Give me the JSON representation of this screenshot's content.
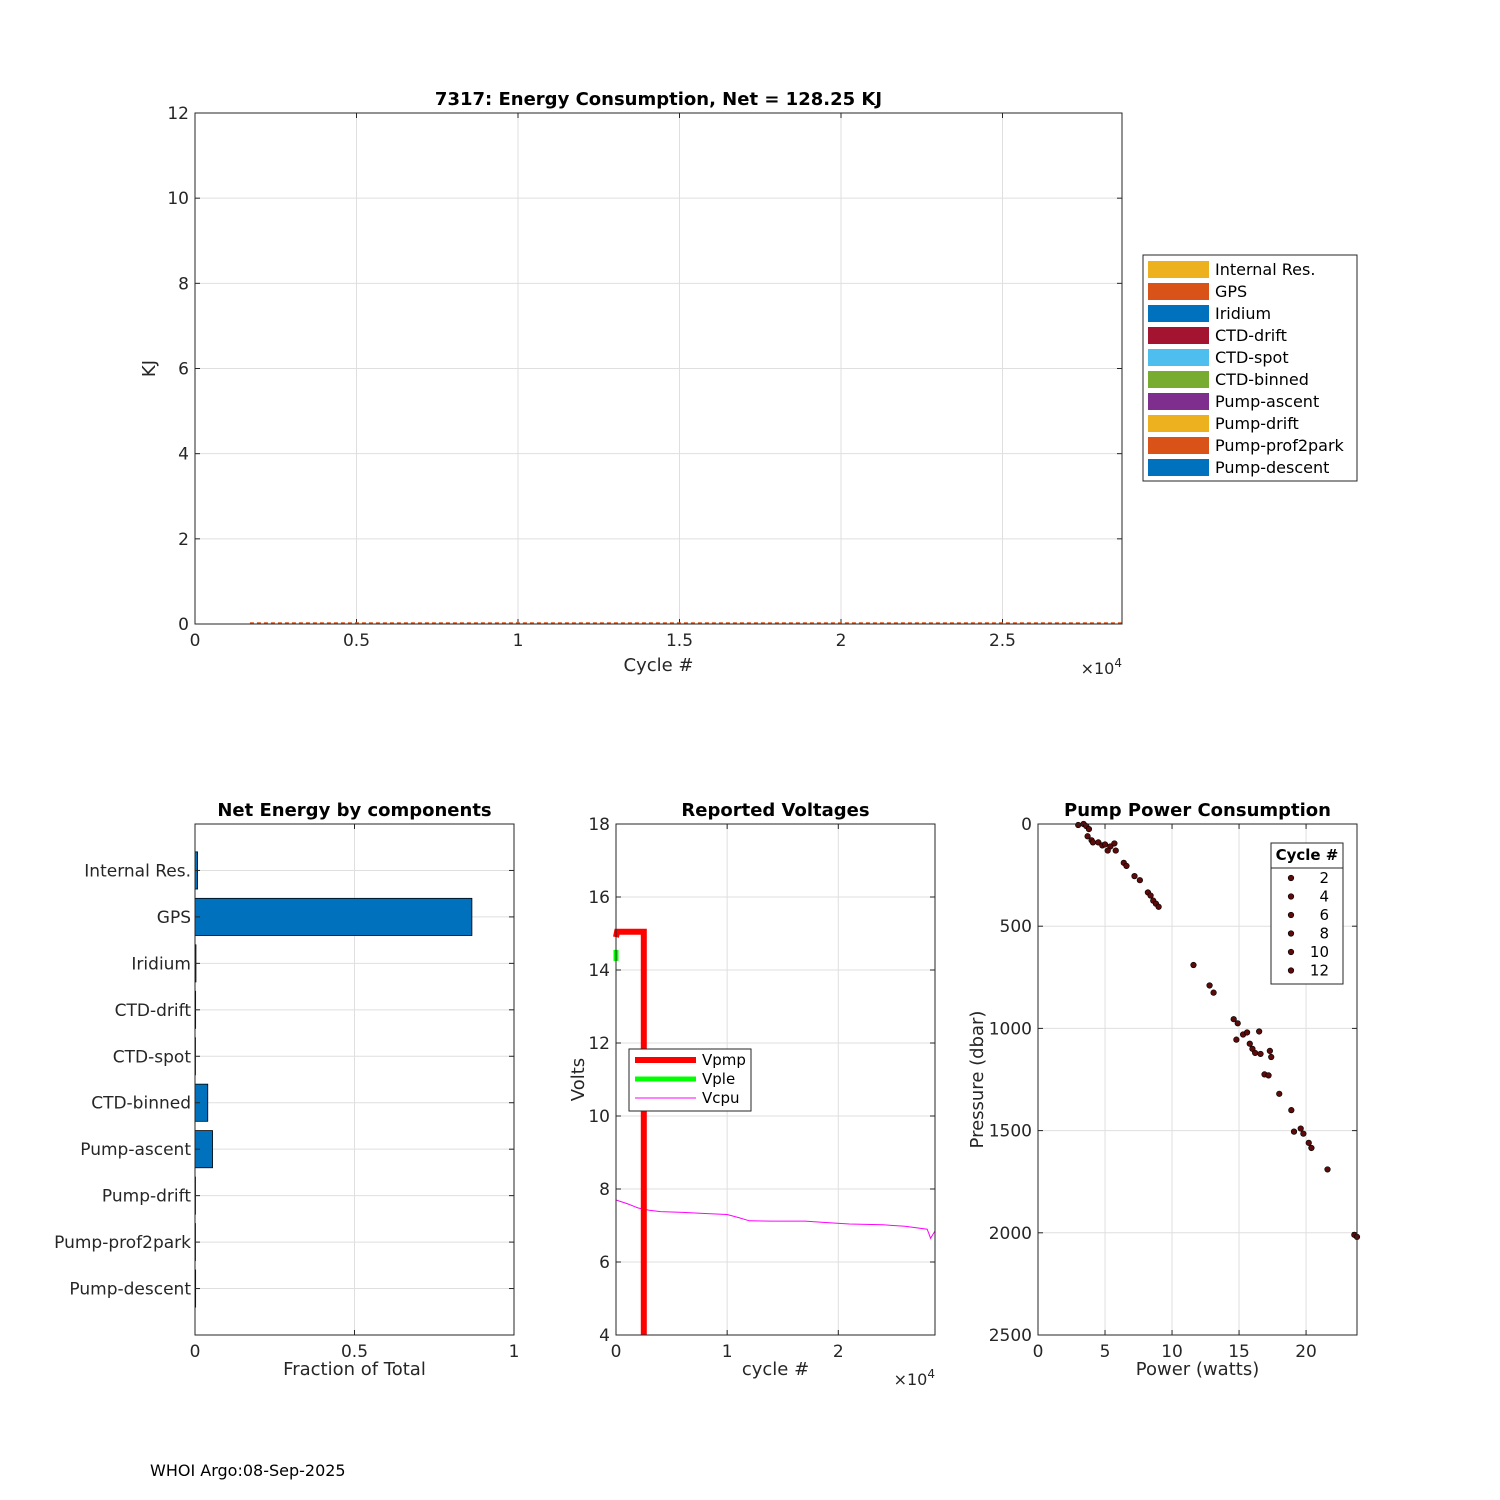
{
  "footer": "WHOI Argo:08-Sep-2025",
  "chart_data": [
    {
      "id": "energy",
      "type": "area",
      "title": "7317: Energy Consumption,  Net = 128.25 KJ",
      "xlabel": "Cycle #",
      "ylabel": "KJ",
      "xlim": [
        0,
        28700
      ],
      "ylim": [
        0,
        12
      ],
      "x_exponent_label": "×10",
      "x_exponent": "4",
      "xticks": [
        0,
        5000,
        10000,
        15000,
        20000,
        25000
      ],
      "xtick_labels": [
        "0",
        "0.5",
        "1",
        "1.5",
        "2",
        "2.5"
      ],
      "yticks": [
        0,
        2,
        4,
        6,
        8,
        10,
        12
      ],
      "ytick_labels": [
        "0",
        "2",
        "4",
        "6",
        "8",
        "10",
        "12"
      ],
      "grid": true,
      "legend_position": "outside-right",
      "x_start": 1700,
      "series": [
        {
          "name": "Internal Res.",
          "color": "#EDB120",
          "value": 0.0002
        },
        {
          "name": "GPS",
          "color": "#D95319",
          "value": 0.0035
        },
        {
          "name": "Iridium",
          "color": "#0072BD",
          "value": 2e-05
        },
        {
          "name": "CTD-drift",
          "color": "#A2142F",
          "value": 1e-05
        },
        {
          "name": "CTD-spot",
          "color": "#4DBEEE",
          "value": 1e-06
        },
        {
          "name": "CTD-binned",
          "color": "#77AC30",
          "value": 0.00015
        },
        {
          "name": "Pump-ascent",
          "color": "#7E2F8E",
          "value": 0.0002
        },
        {
          "name": "Pump-drift",
          "color": "#EDB120",
          "value": 1e-06
        },
        {
          "name": "Pump-prof2park",
          "color": "#D95319",
          "value": 1e-06
        },
        {
          "name": "Pump-descent",
          "color": "#0072BD",
          "value": 1e-05
        }
      ]
    },
    {
      "id": "components",
      "type": "bar",
      "orientation": "horizontal",
      "title": "Net Energy by components",
      "xlabel": "Fraction of Total",
      "xlim": [
        0,
        1
      ],
      "xticks": [
        0,
        0.5,
        1
      ],
      "xtick_labels": [
        "0",
        "0.5",
        "1"
      ],
      "categories": [
        "Internal Res.",
        "GPS",
        "Iridium",
        "CTD-drift",
        "CTD-spot",
        "CTD-binned",
        "Pump-ascent",
        "Pump-drift",
        "Pump-prof2park",
        "Pump-descent"
      ],
      "values": [
        0.008,
        0.868,
        0.003,
        0.002,
        0.0005,
        0.04,
        0.055,
        0.0005,
        0.0005,
        0.002
      ],
      "bar_color": "#0072BD",
      "grid": true
    },
    {
      "id": "voltages",
      "type": "line",
      "title": "Reported Voltages",
      "xlabel": "cycle #",
      "ylabel": "Volts",
      "xlim": [
        0,
        28700
      ],
      "ylim": [
        4,
        18
      ],
      "x_exponent_label": "×10",
      "x_exponent": "4",
      "xticks": [
        0,
        10000,
        20000
      ],
      "xtick_labels": [
        "0",
        "1",
        "2"
      ],
      "yticks": [
        4,
        6,
        8,
        10,
        12,
        14,
        16,
        18
      ],
      "ytick_labels": [
        "4",
        "6",
        "8",
        "10",
        "12",
        "14",
        "16",
        "18"
      ],
      "grid": true,
      "legend_position": "middle-left",
      "series": [
        {
          "name": "Vpmp",
          "color": "#FF0000",
          "width": 6,
          "points": [
            [
              0,
              14.9
            ],
            [
              100,
              15.05
            ],
            [
              2500,
              15.05
            ],
            [
              2500,
              4
            ]
          ]
        },
        {
          "name": "Vple",
          "color": "#00FF00",
          "width": 5,
          "points": [
            [
              0,
              14.25
            ],
            [
              0,
              14.55
            ]
          ]
        },
        {
          "name": "Vcpu",
          "color": "#FF00FF",
          "width": 1,
          "points": [
            [
              0,
              7.7
            ],
            [
              1000,
              7.6
            ],
            [
              2000,
              7.48
            ],
            [
              3000,
              7.42
            ],
            [
              4000,
              7.38
            ],
            [
              6000,
              7.36
            ],
            [
              8000,
              7.33
            ],
            [
              10000,
              7.3
            ],
            [
              11000,
              7.22
            ],
            [
              12000,
              7.13
            ],
            [
              14000,
              7.12
            ],
            [
              17000,
              7.12
            ],
            [
              19000,
              7.08
            ],
            [
              21000,
              7.04
            ],
            [
              24000,
              7.02
            ],
            [
              26000,
              6.98
            ],
            [
              28000,
              6.9
            ],
            [
              28300,
              6.65
            ],
            [
              28700,
              6.85
            ]
          ]
        }
      ]
    },
    {
      "id": "pump",
      "type": "scatter",
      "title": "Pump Power Consumption",
      "xlabel": "Power (watts)",
      "ylabel": "Pressure (dbar)",
      "xlim": [
        0,
        23.8
      ],
      "ylim": [
        0,
        2500
      ],
      "y_reversed": true,
      "xticks": [
        0,
        5,
        10,
        15,
        20
      ],
      "xtick_labels": [
        "0",
        "5",
        "10",
        "15",
        "20"
      ],
      "yticks": [
        0,
        500,
        1000,
        1500,
        2000,
        2500
      ],
      "ytick_labels": [
        "0",
        "500",
        "1000",
        "1500",
        "2000",
        "2500"
      ],
      "grid": true,
      "legend_title": "Cycle #",
      "legend_entries": [
        "2",
        "4",
        "6",
        "8",
        "10",
        "12"
      ],
      "marker_color": "#5C0A0A",
      "points": [
        [
          3.0,
          5
        ],
        [
          3.4,
          0
        ],
        [
          3.6,
          10
        ],
        [
          3.8,
          25
        ],
        [
          3.7,
          60
        ],
        [
          4.0,
          80
        ],
        [
          4.1,
          90
        ],
        [
          4.5,
          90
        ],
        [
          4.8,
          105
        ],
        [
          5.0,
          100
        ],
        [
          5.4,
          110
        ],
        [
          5.2,
          130
        ],
        [
          5.7,
          95
        ],
        [
          5.8,
          130
        ],
        [
          6.4,
          190
        ],
        [
          6.6,
          205
        ],
        [
          7.2,
          255
        ],
        [
          7.6,
          275
        ],
        [
          8.2,
          335
        ],
        [
          8.4,
          350
        ],
        [
          8.6,
          375
        ],
        [
          8.8,
          390
        ],
        [
          9.0,
          405
        ],
        [
          11.6,
          690
        ],
        [
          12.8,
          790
        ],
        [
          13.1,
          825
        ],
        [
          14.6,
          955
        ],
        [
          14.9,
          975
        ],
        [
          14.8,
          1055
        ],
        [
          15.3,
          1030
        ],
        [
          15.6,
          1020
        ],
        [
          15.8,
          1075
        ],
        [
          16.0,
          1100
        ],
        [
          16.2,
          1120
        ],
        [
          16.5,
          1015
        ],
        [
          16.6,
          1125
        ],
        [
          16.9,
          1225
        ],
        [
          17.2,
          1230
        ],
        [
          17.4,
          1140
        ],
        [
          17.3,
          1110
        ],
        [
          18.0,
          1320
        ],
        [
          18.9,
          1400
        ],
        [
          19.1,
          1505
        ],
        [
          19.6,
          1490
        ],
        [
          19.8,
          1515
        ],
        [
          20.2,
          1560
        ],
        [
          20.4,
          1585
        ],
        [
          21.6,
          1690
        ],
        [
          23.6,
          2010
        ],
        [
          23.8,
          2020
        ]
      ]
    }
  ]
}
